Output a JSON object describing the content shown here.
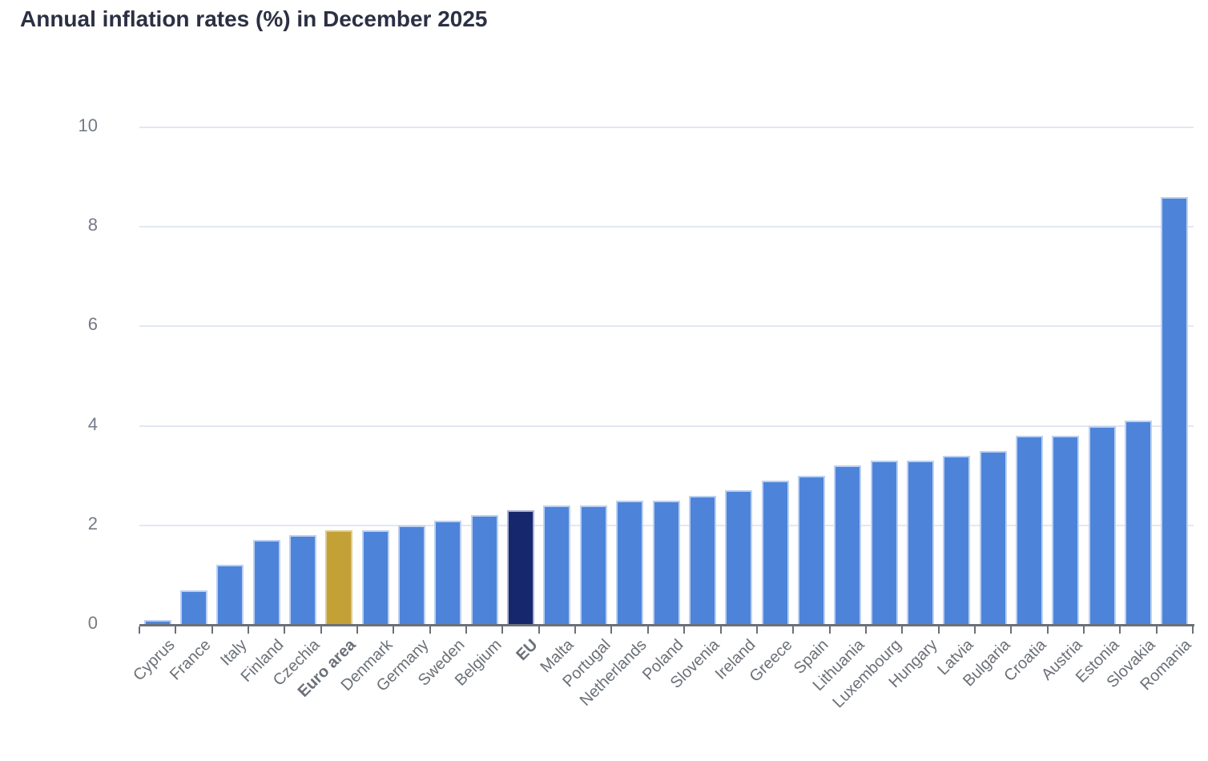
{
  "chart_data": {
    "type": "bar",
    "title": "Annual inflation rates (%) in December 2025",
    "xlabel": "",
    "ylabel": "",
    "ylim": [
      0,
      10
    ],
    "yticks": [
      0,
      2,
      4,
      6,
      8,
      10
    ],
    "grid": true,
    "legend": false,
    "categories": [
      "Cyprus",
      "France",
      "Italy",
      "Finland",
      "Czechia",
      "Euro area",
      "Denmark",
      "Germany",
      "Sweden",
      "Belgium",
      "EU",
      "Malta",
      "Portugal",
      "Netherlands",
      "Poland",
      "Slovenia",
      "Ireland",
      "Greece",
      "Spain",
      "Lithuania",
      "Luxembourg",
      "Hungary",
      "Latvia",
      "Bulgaria",
      "Croatia",
      "Austria",
      "Estonia",
      "Slovakia",
      "Romania"
    ],
    "values": [
      0.1,
      0.7,
      1.2,
      1.7,
      1.8,
      1.9,
      1.9,
      2.0,
      2.1,
      2.2,
      2.3,
      2.4,
      2.4,
      2.5,
      2.5,
      2.6,
      2.7,
      2.9,
      3.0,
      3.2,
      3.3,
      3.3,
      3.4,
      3.5,
      3.8,
      3.8,
      4.0,
      4.1,
      8.6
    ],
    "bold_categories": [
      "Euro area",
      "EU"
    ],
    "bar_colors": {
      "default": "#4D84DA",
      "Euro area": "#C4A136",
      "EU": "#16276E"
    },
    "bar_edge_colors": {
      "default": "#BCD0F1",
      "Euro area": "#DACD92",
      "EU": "#A9B3D7"
    }
  },
  "colors": {
    "background": "#FFFFFF",
    "title": "#2B3044",
    "axis": "#6B7078",
    "grid": "#E2E7F3",
    "y_label": "#757A85",
    "x_label": "#6B7077"
  }
}
